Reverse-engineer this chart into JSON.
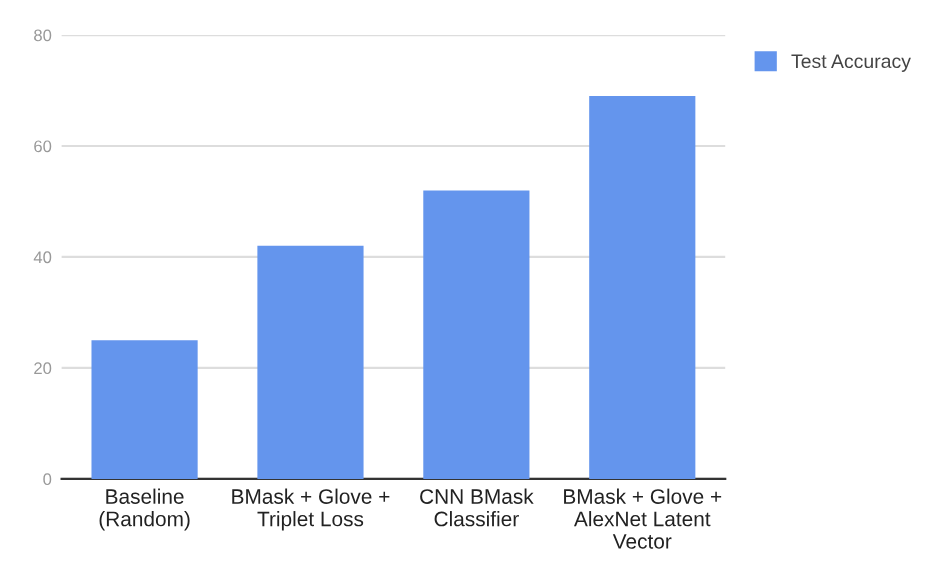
{
  "chart_data": {
    "type": "bar",
    "categories": [
      "Baseline\n(Random)",
      "BMask + Glove +\nTriplet Loss",
      "CNN BMask\nClassifier",
      "BMask + Glove +\nAlexNet Latent\nVector"
    ],
    "series": [
      {
        "name": "Test Accuracy",
        "color": "#6495ed",
        "values": [
          25,
          42,
          52,
          69
        ]
      }
    ],
    "ylim": [
      0,
      80
    ],
    "yticks": [
      0,
      20,
      40,
      60,
      80
    ],
    "grid": "y",
    "legend": "top right"
  }
}
